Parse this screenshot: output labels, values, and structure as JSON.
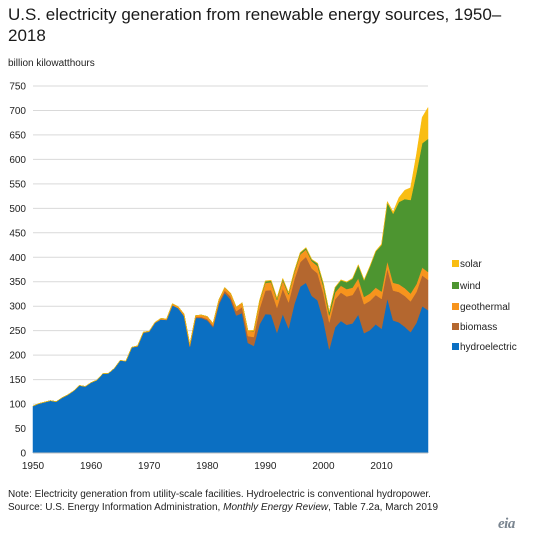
{
  "title": "U.S. electricity generation from renewable energy sources, 1950–2018",
  "unit_label": "billion kilowatthours",
  "note": {
    "line1": "Note: Electricity generation from utility-scale facilities. Hydroelectric is conventional hydropower.",
    "source_prefix": "Source: U.S. Energy Information Administration, ",
    "source_title": "Monthly Energy Review",
    "source_suffix": ", Table 7.2a, March 2019"
  },
  "logo": "eia",
  "chart_data": {
    "type": "area",
    "stacked": true,
    "x": [
      1950,
      1951,
      1952,
      1953,
      1954,
      1955,
      1956,
      1957,
      1958,
      1959,
      1960,
      1961,
      1962,
      1963,
      1964,
      1965,
      1966,
      1967,
      1968,
      1969,
      1970,
      1971,
      1972,
      1973,
      1974,
      1975,
      1976,
      1977,
      1978,
      1979,
      1980,
      1981,
      1982,
      1983,
      1984,
      1985,
      1986,
      1987,
      1988,
      1989,
      1990,
      1991,
      1992,
      1993,
      1994,
      1995,
      1996,
      1997,
      1998,
      1999,
      2000,
      2001,
      2002,
      2003,
      2004,
      2005,
      2006,
      2007,
      2008,
      2009,
      2010,
      2011,
      2012,
      2013,
      2014,
      2015,
      2016,
      2017,
      2018
    ],
    "xticks": [
      1950,
      1960,
      1970,
      1980,
      1990,
      2000,
      2010
    ],
    "ylim": [
      0,
      750
    ],
    "yticks": [
      0,
      50,
      100,
      150,
      200,
      250,
      300,
      350,
      400,
      450,
      500,
      550,
      600,
      650,
      700,
      750
    ],
    "legend_position": "right",
    "series": [
      {
        "name": "hydroelectric",
        "color": "#0b6fc2",
        "values": [
          96,
          101,
          104,
          107,
          105,
          113,
          119,
          127,
          138,
          136,
          144,
          149,
          162,
          163,
          173,
          189,
          188,
          216,
          218,
          246,
          248,
          266,
          273,
          272,
          302,
          296,
          280,
          217,
          276,
          276,
          271,
          257,
          304,
          327,
          314,
          281,
          286,
          225,
          219,
          263,
          284,
          283,
          246,
          284,
          255,
          305,
          340,
          348,
          321,
          312,
          271,
          212,
          257,
          270,
          262,
          265,
          283,
          245,
          251,
          263,
          254,
          316,
          271,
          267,
          258,
          247,
          266,
          300,
          292
        ]
      },
      {
        "name": "biomass",
        "color": "#b4672f",
        "values": [
          0,
          0,
          0,
          0,
          0,
          0,
          0,
          0,
          0,
          0,
          0,
          0,
          0,
          0,
          0,
          0,
          0,
          0,
          0,
          0,
          0,
          0,
          0,
          0,
          0,
          0,
          0,
          1,
          2,
          2,
          3,
          3,
          4,
          5,
          6,
          9,
          12,
          14,
          18,
          32,
          48,
          50,
          51,
          52,
          53,
          50,
          50,
          53,
          56,
          55,
          55,
          55,
          57,
          58,
          58,
          58,
          59,
          59,
          60,
          60,
          61,
          61,
          61,
          62,
          63,
          63,
          63,
          63,
          62
        ]
      },
      {
        "name": "geothermal",
        "color": "#f7941d",
        "values": [
          0,
          0,
          0,
          0,
          0,
          0,
          0,
          0,
          0,
          0,
          0,
          0,
          0,
          0,
          0,
          0,
          0,
          0,
          1,
          1,
          1,
          1,
          2,
          2,
          3,
          3,
          4,
          4,
          3,
          4,
          5,
          5,
          5,
          6,
          7,
          8,
          9,
          11,
          12,
          14,
          16,
          16,
          16,
          17,
          16,
          14,
          16,
          15,
          15,
          15,
          14,
          14,
          14,
          14,
          15,
          15,
          15,
          15,
          15,
          15,
          15,
          15,
          16,
          16,
          16,
          16,
          16,
          16,
          16
        ]
      },
      {
        "name": "wind",
        "color": "#4d9530",
        "values": [
          0,
          0,
          0,
          0,
          0,
          0,
          0,
          0,
          0,
          0,
          0,
          0,
          0,
          0,
          0,
          0,
          0,
          0,
          0,
          0,
          0,
          0,
          0,
          0,
          0,
          0,
          0,
          0,
          0,
          0,
          0,
          0,
          0,
          0,
          0,
          0,
          0,
          0,
          1,
          2,
          3,
          3,
          3,
          3,
          3,
          3,
          3,
          3,
          3,
          5,
          6,
          7,
          10,
          11,
          14,
          18,
          27,
          34,
          55,
          74,
          95,
          120,
          141,
          168,
          182,
          191,
          227,
          254,
          272
        ]
      },
      {
        "name": "solar",
        "color": "#f9bd12",
        "values": [
          0,
          0,
          0,
          0,
          0,
          0,
          0,
          0,
          0,
          0,
          0,
          0,
          0,
          0,
          0,
          0,
          0,
          0,
          0,
          0,
          0,
          0,
          0,
          0,
          0,
          0,
          0,
          0,
          0,
          0,
          0,
          0,
          0,
          0,
          0,
          0,
          0,
          0,
          1,
          1,
          1,
          1,
          1,
          1,
          1,
          1,
          1,
          1,
          1,
          1,
          1,
          1,
          1,
          1,
          1,
          1,
          1,
          1,
          1,
          1,
          2,
          2,
          4,
          9,
          18,
          25,
          37,
          53,
          64
        ]
      }
    ],
    "legend_order": [
      "solar",
      "wind",
      "geothermal",
      "biomass",
      "hydroelectric"
    ]
  }
}
